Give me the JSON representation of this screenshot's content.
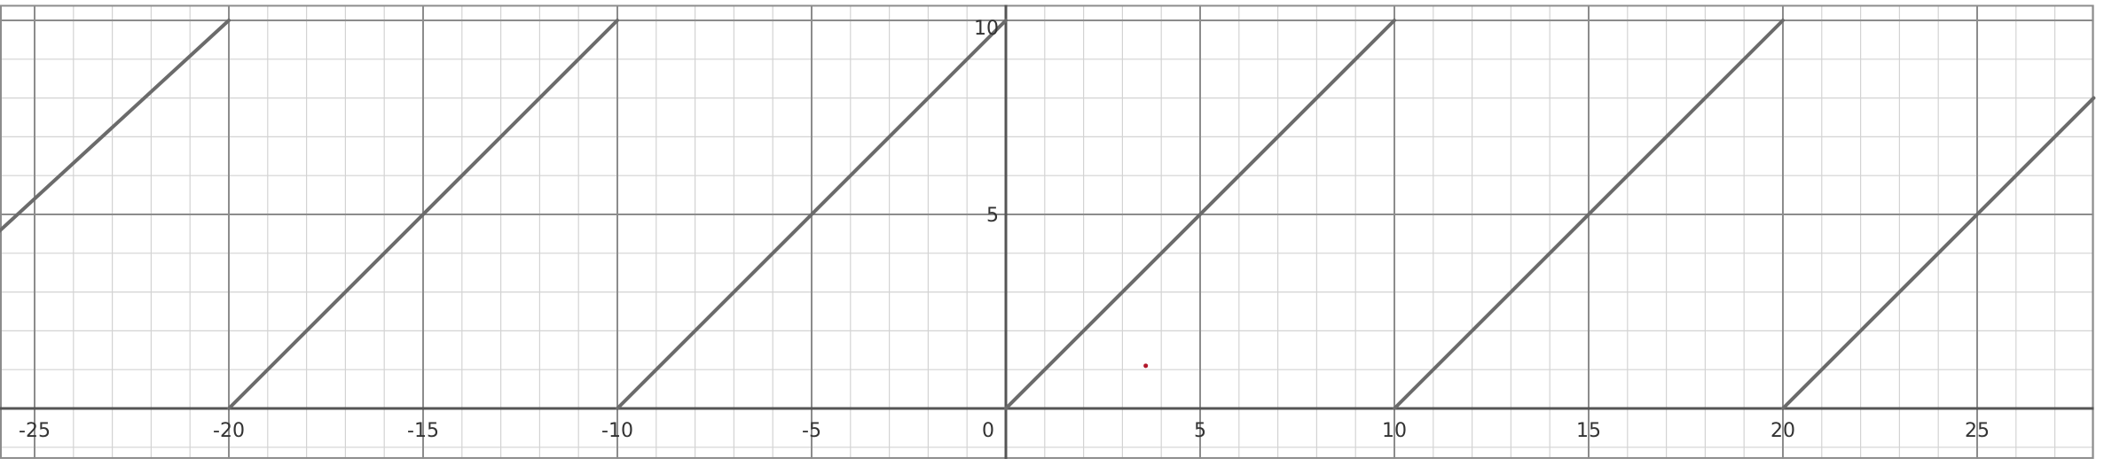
{
  "chart_data": {
    "type": "line",
    "title": "",
    "xlabel": "",
    "ylabel": "",
    "xlim": [
      -26.2,
      28.0
    ],
    "ylim": [
      -1.3,
      10.4
    ],
    "grid": true,
    "minor_grid_step": 1,
    "major_grid_step": 5,
    "x_ticks": [
      -25,
      -20,
      -15,
      -10,
      -5,
      0,
      5,
      10,
      15,
      20,
      25
    ],
    "x_tick_labels": [
      "-25",
      "-20",
      "-15",
      "-10",
      "-5",
      "0",
      "5",
      "10",
      "15",
      "20",
      "25"
    ],
    "y_ticks": [
      5,
      10
    ],
    "y_tick_labels": [
      "5",
      "10"
    ],
    "series": [
      {
        "segments": [
          [
            [
              -26.2,
              4.3
            ],
            [
              -20,
              10
            ]
          ],
          [
            [
              -20,
              0
            ],
            [
              -10,
              10
            ]
          ],
          [
            [
              -10,
              0
            ],
            [
              0,
              10
            ]
          ],
          [
            [
              0,
              0
            ],
            [
              10,
              10
            ]
          ],
          [
            [
              10,
              0
            ],
            [
              20,
              10
            ]
          ],
          [
            [
              20,
              0
            ],
            [
              28.0,
              8.0
            ]
          ]
        ]
      }
    ],
    "marker_point": {
      "x": 3.6,
      "y": 1.1
    },
    "colors": {
      "line": "#6b6b6b",
      "major_grid": "#8c8c8c",
      "minor_grid": "#d3d3d3",
      "axis": "#555555",
      "marker": "#b2182b"
    }
  }
}
